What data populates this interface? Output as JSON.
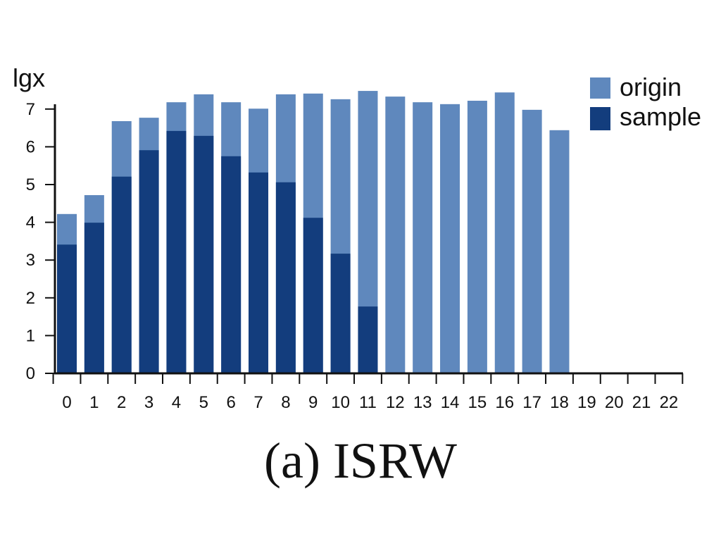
{
  "chart_data": {
    "type": "bar",
    "bar_mode": "overlay",
    "ylabel": "lgx",
    "xlabel": "",
    "caption": "(a) ISRW",
    "categories": [
      "0",
      "1",
      "2",
      "3",
      "4",
      "5",
      "6",
      "7",
      "8",
      "9",
      "10",
      "11",
      "12",
      "13",
      "14",
      "15",
      "16",
      "17",
      "18",
      "19",
      "20",
      "21",
      "22"
    ],
    "ylim": [
      0,
      7
    ],
    "yticks": [
      0,
      1,
      2,
      3,
      4,
      5,
      6,
      7
    ],
    "grid": false,
    "legend_position": "top-right",
    "series": [
      {
        "name": "origin",
        "color": "#5f88bd",
        "values": [
          4.22,
          4.72,
          6.68,
          6.77,
          7.18,
          7.39,
          7.18,
          7.01,
          7.39,
          7.41,
          7.26,
          7.48,
          7.33,
          7.18,
          7.13,
          7.22,
          7.44,
          6.98,
          6.44,
          null,
          null,
          null,
          null
        ]
      },
      {
        "name": "sample",
        "color": "#133d7d",
        "values": [
          3.41,
          3.99,
          5.21,
          5.91,
          6.42,
          6.29,
          5.75,
          5.32,
          5.06,
          4.12,
          3.17,
          1.77,
          null,
          null,
          null,
          null,
          null,
          null,
          null,
          null,
          null,
          null,
          null
        ]
      }
    ]
  }
}
